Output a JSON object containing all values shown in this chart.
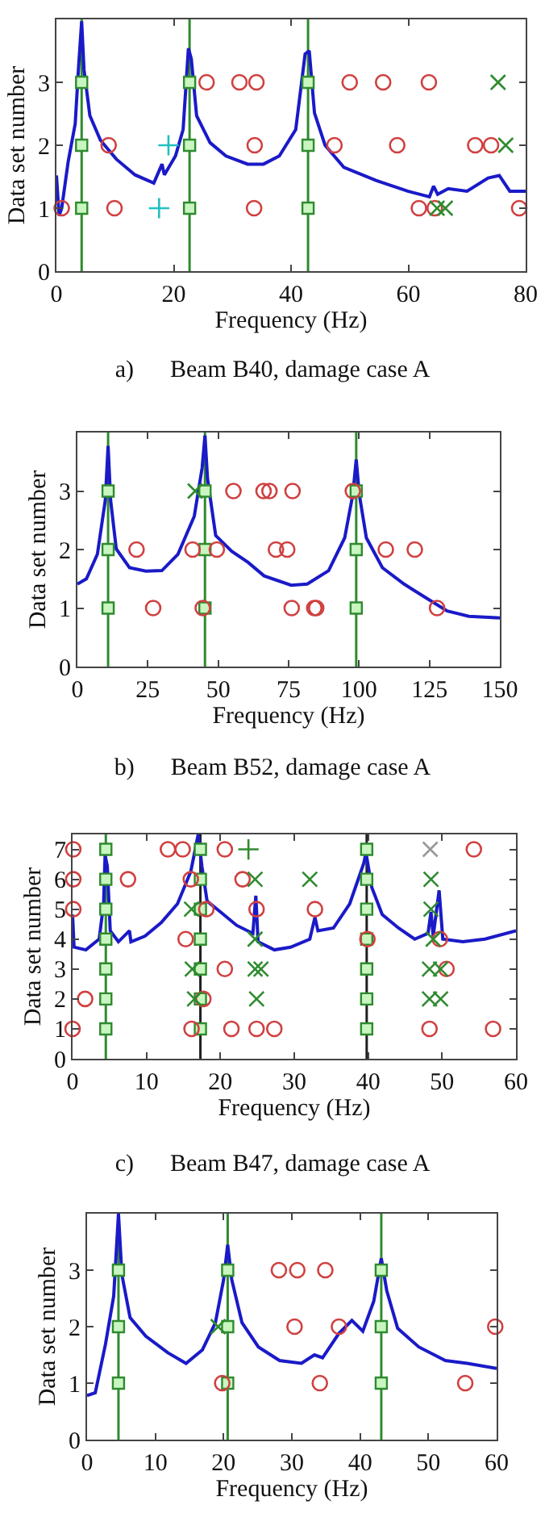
{
  "chart_data": [
    {
      "type": "scatter",
      "title": "a)      Beam B40, damage case A",
      "xlabel": "Frequency (Hz)",
      "ylabel": "Data set number",
      "xlim": [
        0,
        80
      ],
      "ylim": [
        0,
        4
      ],
      "xticks": [
        0,
        20,
        40,
        60,
        80
      ],
      "yticks": [
        0,
        1,
        2,
        3
      ],
      "ref_lines": [
        {
          "axis": "x",
          "value": 4.3,
          "color": "#2e8b2e"
        },
        {
          "axis": "x",
          "value": 22.7,
          "color": "#2e8b2e"
        },
        {
          "axis": "x",
          "value": 42.9,
          "color": "#2e8b2e"
        }
      ],
      "series": [
        {
          "type": "line",
          "color": "#1a1ac8",
          "marker": "none",
          "x": [
            0,
            0.46,
            0.9,
            2,
            3.2,
            3.8,
            4.3,
            4.7,
            5.7,
            7.5,
            10.2,
            13.4,
            16.6,
            18,
            18.4,
            20.3,
            21.6,
            22.5,
            23,
            23.9,
            26.2,
            28.9,
            32.6,
            35.3,
            38,
            40.8,
            42.4,
            43.1,
            44,
            45.8,
            49,
            54.5,
            59.9,
            63.6,
            64.3,
            65,
            66.8,
            70,
            73.6,
            75.5,
            77.3,
            80
          ],
          "values": [
            1.52,
            0.88,
            1,
            1.74,
            2.34,
            3.28,
            3.97,
            3.2,
            2.47,
            2.08,
            1.78,
            1.53,
            1.4,
            1.7,
            1.53,
            1.83,
            2.25,
            3.54,
            3.37,
            2.47,
            2.04,
            1.83,
            1.7,
            1.7,
            1.83,
            2.25,
            3.45,
            3.5,
            2.51,
            2,
            1.65,
            1.44,
            1.27,
            1.18,
            1.35,
            1.22,
            1.31,
            1.27,
            1.48,
            1.52,
            1.27,
            1.27
          ]
        },
        {
          "type": "scatter",
          "color": "#2e8b2e",
          "marker": "square",
          "x": [
            4.3,
            4.3,
            4.3,
            22.7,
            22.7,
            22.7,
            42.9,
            42.9,
            42.9
          ],
          "values": [
            1,
            2,
            3,
            1,
            2,
            3,
            1,
            2,
            3
          ]
        },
        {
          "type": "scatter",
          "color": "#d04040",
          "marker": "circle",
          "x": [
            25.6,
            31.2,
            34.1,
            50,
            55.7,
            63.5,
            8.9,
            33.8,
            47.4,
            58.1,
            71.4,
            74.1,
            0.9,
            9.9,
            33.7,
            61.8,
            64.5,
            78.9
          ],
          "values": [
            3,
            3,
            3,
            3,
            3,
            3,
            2,
            2,
            2,
            2,
            2,
            2,
            1,
            1,
            1,
            1,
            1,
            1
          ]
        },
        {
          "type": "scatter",
          "color": "#2e8b2e",
          "marker": "x",
          "x": [
            75.3,
            76.6,
            64.9,
            66.3
          ],
          "values": [
            3,
            2,
            1,
            1
          ]
        },
        {
          "type": "scatter",
          "color": "#20c0c0",
          "marker": "cross",
          "x": [
            19.1,
            17.5
          ],
          "values": [
            2,
            1
          ]
        }
      ]
    },
    {
      "type": "scatter",
      "title": "b)      Beam B52, damage case A",
      "xlabel": "Frequency (Hz)",
      "ylabel": "Data set number",
      "xlim": [
        0,
        150
      ],
      "ylim": [
        0,
        4
      ],
      "xticks": [
        0,
        25,
        50,
        75,
        100,
        125,
        150
      ],
      "yticks": [
        0,
        1,
        2,
        3
      ],
      "ref_lines": [
        {
          "axis": "x",
          "value": 10.9,
          "color": "#2e8b2e"
        },
        {
          "axis": "x",
          "value": 45.3,
          "color": "#2e8b2e"
        },
        {
          "axis": "x",
          "value": 99,
          "color": "#2e8b2e"
        }
      ],
      "series": [
        {
          "type": "line",
          "color": "#1a1ac8",
          "marker": "none",
          "x": [
            0,
            3.2,
            7.1,
            9.9,
            10.9,
            11.8,
            13.8,
            18.5,
            24.3,
            30,
            35.7,
            41.5,
            44.3,
            45.3,
            46.2,
            49.1,
            54.8,
            60.6,
            66.3,
            75.9,
            81.6,
            89.2,
            94.9,
            97.8,
            99,
            100.1,
            102.6,
            108.3,
            116,
            123.6,
            131.3,
            139,
            150
          ],
          "values": [
            1.41,
            1.5,
            1.92,
            2.84,
            3.77,
            2.84,
            2.01,
            1.69,
            1.63,
            1.64,
            1.92,
            2.57,
            3.4,
            3.95,
            3.21,
            2.24,
            1.97,
            1.78,
            1.55,
            1.39,
            1.41,
            1.64,
            2.2,
            2.94,
            3.54,
            2.94,
            2.2,
            1.69,
            1.41,
            1.18,
            0.95,
            0.86,
            0.83
          ]
        },
        {
          "type": "scatter",
          "color": "#2e8b2e",
          "marker": "square",
          "x": [
            10.9,
            10.9,
            10.9,
            45.3,
            45.3,
            45.3,
            99,
            99,
            99
          ],
          "values": [
            1,
            2,
            3,
            1,
            2,
            3,
            1,
            2,
            3
          ]
        },
        {
          "type": "scatter",
          "color": "#d04040",
          "marker": "circle",
          "x": [
            55.4,
            66.1,
            68.2,
            76.4,
            97.8,
            21,
            40.9,
            49.5,
            70.5,
            74.5,
            109.5,
            119.8,
            26.9,
            44.5,
            76.1,
            84.1,
            84.8,
            127.7
          ],
          "values": [
            3,
            3,
            3,
            3,
            3,
            2,
            2,
            2,
            2,
            2,
            2,
            2,
            1,
            1,
            1,
            1,
            1,
            1
          ]
        },
        {
          "type": "scatter",
          "color": "#2e8b2e",
          "marker": "x",
          "x": [
            41.8
          ],
          "values": [
            3
          ]
        }
      ]
    },
    {
      "type": "scatter",
      "title": "c)      Beam B47, damage case A",
      "xlabel": "Frequency (Hz)",
      "ylabel": "Data set number",
      "xlim": [
        0,
        60
      ],
      "ylim": [
        0,
        7.5
      ],
      "xticks": [
        0,
        10,
        20,
        30,
        40,
        50,
        60
      ],
      "yticks": [
        0,
        1,
        2,
        3,
        4,
        5,
        6,
        7
      ],
      "ref_lines": [
        {
          "axis": "x",
          "value": 4.5,
          "color": "#2e8b2e"
        },
        {
          "axis": "x",
          "value": 17.3,
          "color": "#202020"
        },
        {
          "axis": "x",
          "value": 39.8,
          "color": "#202020"
        }
      ],
      "series": [
        {
          "type": "line",
          "color": "#1a1ac8",
          "marker": "none",
          "x": [
            0,
            0.2,
            1.8,
            3.6,
            4.2,
            4.4,
            4.7,
            5.1,
            6.2,
            7.7,
            7.9,
            9.8,
            12,
            14.2,
            16,
            17,
            17.5,
            18.2,
            20,
            22.2,
            24.4,
            24.8,
            25.1,
            27.3,
            29.5,
            32.1,
            32.8,
            33.2,
            35.3,
            37.5,
            39.4,
            39.7,
            40.5,
            41.9,
            44.1,
            46.3,
            48.1,
            48.5,
            48.8,
            49.6,
            50.1,
            52.8,
            55.8,
            60
          ],
          "values": [
            4.82,
            3.73,
            3.64,
            4,
            5.18,
            6.8,
            6.44,
            4.28,
            3.91,
            4.28,
            3.91,
            4.1,
            4.55,
            5.18,
            6.26,
            7.5,
            6.44,
            5.27,
            4.91,
            4.46,
            4.19,
            5.45,
            3.91,
            3.64,
            3.73,
            4,
            4.73,
            4.28,
            4.37,
            5.18,
            6.53,
            6.89,
            5.72,
            4.82,
            4.37,
            4,
            4.19,
            4.91,
            4.1,
            5.63,
            4,
            3.91,
            4,
            4.28
          ]
        },
        {
          "type": "scatter",
          "color": "#2e8b2e",
          "marker": "square",
          "x": [
            4.5,
            4.5,
            4.5,
            4.5,
            4.5,
            4.5,
            4.5,
            17.3,
            17.3,
            17.3,
            17.3,
            17.3,
            17.3,
            17.3,
            39.8,
            39.8,
            39.8,
            39.8,
            39.8,
            39.8,
            39.8
          ],
          "values": [
            1,
            2,
            3,
            4,
            5,
            6,
            7,
            1,
            2,
            3,
            4,
            5,
            6,
            7,
            1,
            2,
            3,
            4,
            5,
            6,
            7
          ]
        },
        {
          "type": "scatter",
          "color": "#d04040",
          "marker": "circle",
          "x": [
            0.1,
            12.9,
            14.9,
            20.6,
            54.3,
            0.1,
            7.5,
            16,
            23,
            0.1,
            18.1,
            24.9,
            32.8,
            15.3,
            39.9,
            49.7,
            20.6,
            50.6,
            1.7,
            17.7,
            0,
            16.1,
            21.5,
            24.9,
            27.3,
            48.3,
            56.9
          ],
          "values": [
            7,
            7,
            7,
            7,
            7,
            6,
            6,
            6,
            6,
            5,
            5,
            5,
            5,
            4,
            4,
            4,
            3,
            3,
            2,
            2,
            1,
            1,
            1,
            1,
            1,
            1,
            1
          ]
        },
        {
          "type": "scatter",
          "color": "#2e8b2e",
          "marker": "x",
          "x": [
            24.7,
            32.1,
            48.5,
            16.1,
            48.5,
            24.7,
            48.8,
            16.2,
            24.7,
            25.5,
            48.3,
            49.8,
            16.5,
            24.9,
            48.3,
            49.8
          ],
          "values": [
            6,
            6,
            6,
            5,
            5,
            4,
            4,
            3,
            3,
            3,
            3,
            3,
            2,
            2,
            2,
            2
          ]
        },
        {
          "type": "scatter",
          "color": "#999999",
          "marker": "x",
          "x": [
            48.4
          ],
          "values": [
            7
          ]
        },
        {
          "type": "scatter",
          "color": "#2e8b2e",
          "marker": "cross",
          "x": [
            23.8
          ],
          "values": [
            7
          ]
        }
      ]
    },
    {
      "type": "scatter",
      "xlabel": "Frequency (Hz)",
      "ylabel": "Data set number",
      "xlim": [
        0,
        60
      ],
      "ylim": [
        0,
        4
      ],
      "xticks": [
        0,
        10,
        20,
        30,
        40,
        50,
        60
      ],
      "yticks": [
        0,
        1,
        2,
        3
      ],
      "ref_lines": [
        {
          "axis": "x",
          "value": 4.6,
          "color": "#2e8b2e"
        },
        {
          "axis": "x",
          "value": 20.6,
          "color": "#2e8b2e"
        },
        {
          "axis": "x",
          "value": 43.1,
          "color": "#2e8b2e"
        }
      ],
      "series": [
        {
          "type": "line",
          "color": "#1a1ac8",
          "marker": "none",
          "x": [
            0,
            1.2,
            2.7,
            3.9,
            4.6,
            5.1,
            6.3,
            8.6,
            11.8,
            14.5,
            16.9,
            18.8,
            20,
            20.6,
            21.2,
            22.7,
            25.1,
            28.2,
            31.4,
            33.3,
            34.5,
            36.9,
            38.8,
            40.4,
            42,
            43.1,
            43.9,
            45.5,
            48.6,
            52.5,
            55.7,
            60
          ],
          "values": [
            0.78,
            0.83,
            1.69,
            2.54,
            4,
            2.92,
            2.16,
            1.83,
            1.54,
            1.35,
            1.59,
            2.07,
            2.83,
            3.45,
            2.83,
            2.07,
            1.64,
            1.4,
            1.35,
            1.5,
            1.45,
            1.88,
            2.11,
            1.92,
            2.45,
            3.21,
            2.64,
            1.97,
            1.64,
            1.4,
            1.35,
            1.26
          ]
        },
        {
          "type": "scatter",
          "color": "#2e8b2e",
          "marker": "square",
          "x": [
            4.6,
            4.6,
            4.6,
            20.6,
            20.6,
            20.6,
            43.1,
            43.1,
            43.1
          ],
          "values": [
            1,
            2,
            3,
            1,
            2,
            3,
            1,
            2,
            3
          ]
        },
        {
          "type": "scatter",
          "color": "#d04040",
          "marker": "circle",
          "x": [
            28.1,
            30.8,
            34.9,
            30.4,
            36.9,
            59.8,
            19.8,
            34.1,
            55.4
          ],
          "values": [
            3,
            3,
            3,
            2,
            2,
            2,
            1,
            1,
            1
          ]
        },
        {
          "type": "scatter",
          "color": "#2e8b2e",
          "marker": "x",
          "x": [
            19.2
          ],
          "values": [
            2
          ]
        }
      ]
    }
  ]
}
